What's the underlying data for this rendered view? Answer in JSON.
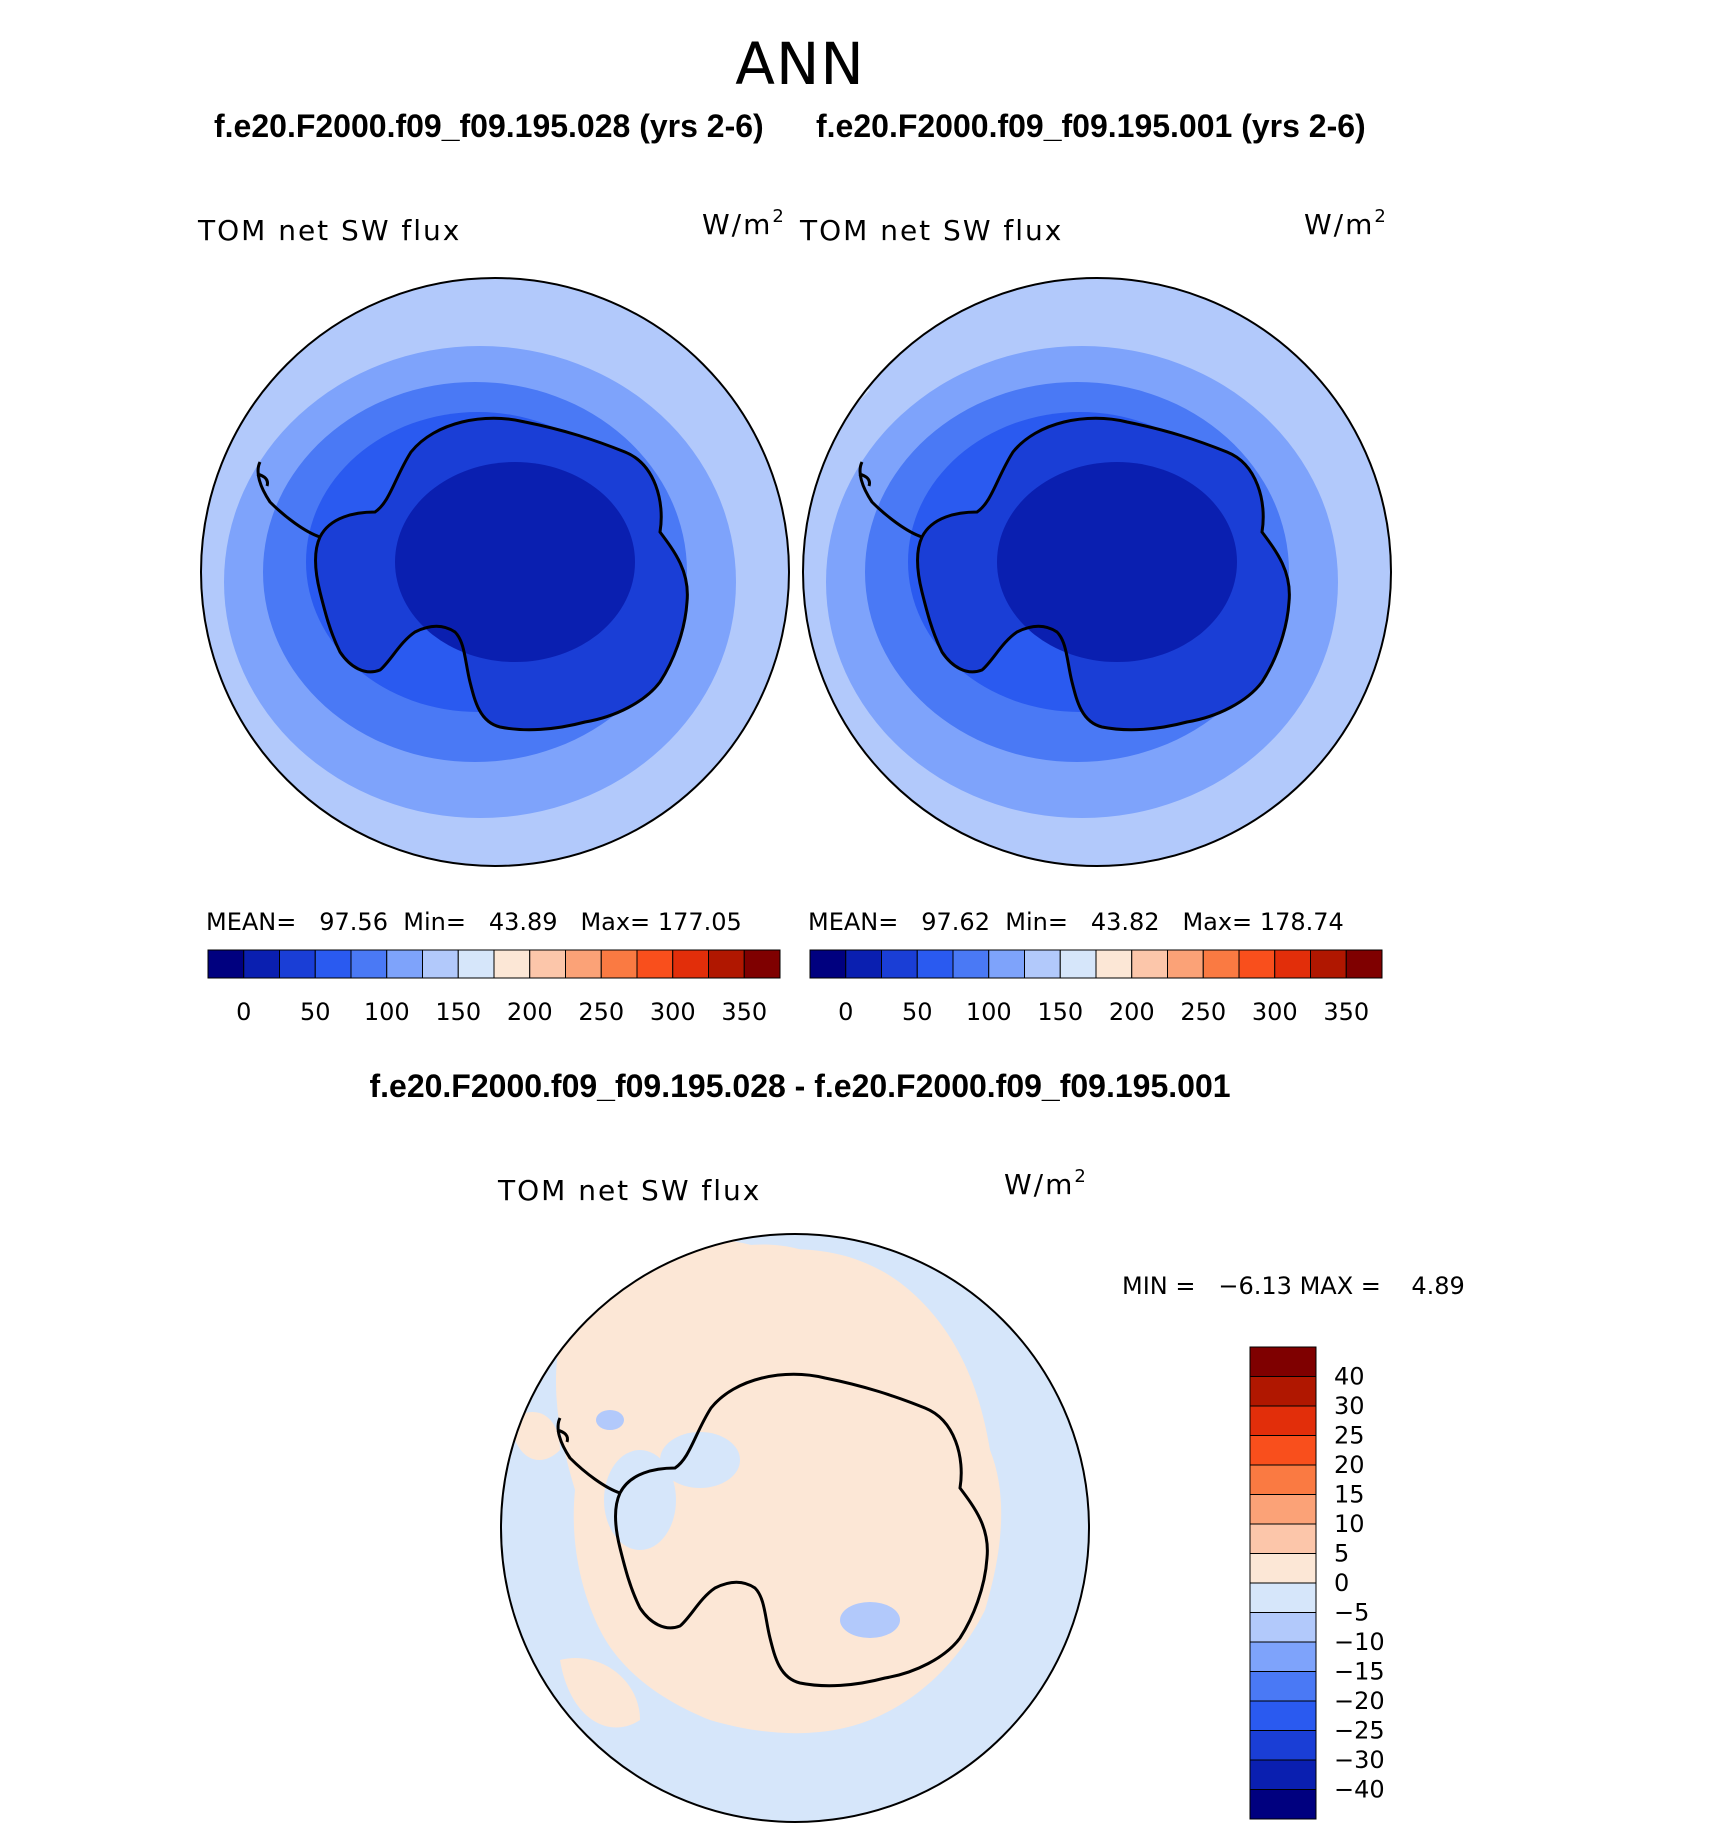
{
  "title": "ANN",
  "panels": [
    {
      "case_title": "f.e20.F2000.f09_f09.195.028 (yrs 2-6)",
      "variable": "TOM net SW flux",
      "units_base": "W/m",
      "units_exp": "2",
      "stats": {
        "mean_label": "MEAN=",
        "mean": "97.56",
        "min_label": "Min=",
        "min": "43.89",
        "max_label": "Max=",
        "max": "177.05"
      }
    },
    {
      "case_title": "f.e20.F2000.f09_f09.195.001 (yrs 2-6)",
      "variable": "TOM net SW flux",
      "units_base": "W/m",
      "units_exp": "2",
      "stats": {
        "mean_label": "MEAN=",
        "mean": "97.62",
        "min_label": "Min=",
        "min": "43.82",
        "max_label": "Max=",
        "max": "178.74"
      }
    }
  ],
  "difference": {
    "title": "f.e20.F2000.f09_f09.195.028 - f.e20.F2000.f09_f09.195.001",
    "variable": "TOM net SW flux",
    "units_base": "W/m",
    "units_exp": "2",
    "min_label": "MIN =",
    "min": "−6.13",
    "max_label": "MAX =",
    "max": "4.89"
  },
  "colorbars": {
    "absolute": {
      "colors": [
        "#00007f",
        "#0a1fb0",
        "#1a3ed6",
        "#2a5af0",
        "#4a79f5",
        "#7ea3fb",
        "#b2c9fb",
        "#d6e6fa",
        "#fce7d6",
        "#fcc6aa",
        "#fba277",
        "#fa7a42",
        "#f94f1c",
        "#e22e0a",
        "#b01700",
        "#7f0000"
      ],
      "tick_labels": [
        "0",
        "50",
        "100",
        "150",
        "200",
        "250",
        "300",
        "350"
      ]
    },
    "difference": {
      "colors": [
        "#00007f",
        "#0a1fb0",
        "#1a3ed6",
        "#2a5af0",
        "#4a79f5",
        "#7ea3fb",
        "#b2c9fb",
        "#d6e6fa",
        "#fce7d6",
        "#fcc6aa",
        "#fba277",
        "#fa7a42",
        "#f94f1c",
        "#e22e0a",
        "#b01700",
        "#7f0000"
      ],
      "tick_labels": [
        "−40",
        "−30",
        "−25",
        "−20",
        "−15",
        "−10",
        "−5",
        "0",
        "5",
        "10",
        "15",
        "20",
        "25",
        "30",
        "40"
      ]
    }
  },
  "map_colors": {
    "ring_outer": "#b2c9fb",
    "ring_2": "#7ea3fb",
    "ring_3": "#4a79f5",
    "ring_4": "#2a5af0",
    "ring_inner": "#1a3ed6",
    "ring_core": "#0a1fb0",
    "edge_light": "#d6e6fa",
    "diff_negative": "#d6e6fa",
    "diff_positive": "#fce7d6",
    "diff_deeper": "#b2c9fb",
    "coast": "#000000"
  }
}
